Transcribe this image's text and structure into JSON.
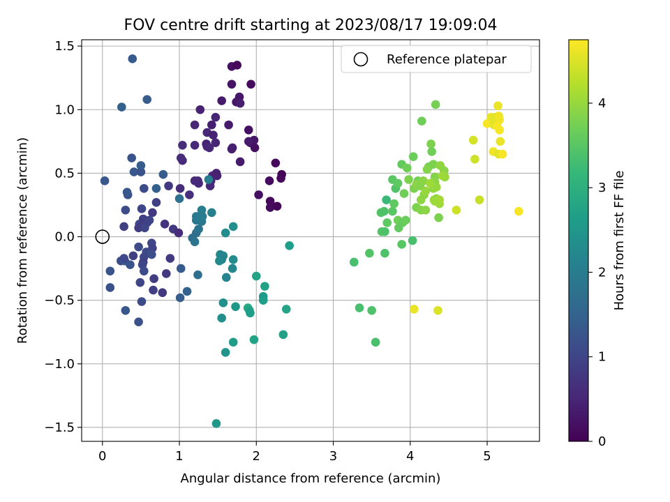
{
  "chart_data": {
    "type": "scatter",
    "title": "FOV centre drift starting at 2023/08/17 19:09:04",
    "xlabel": "Angular distance from reference (arcmin)",
    "ylabel": "Rotation from reference (arcmin)",
    "xlim": [
      -0.27,
      5.68
    ],
    "ylim": [
      -1.61,
      1.55
    ],
    "xticks": [
      0,
      1,
      2,
      3,
      4,
      5
    ],
    "yticks": [
      -1.5,
      -1.0,
      -0.5,
      0.0,
      0.5,
      1.0,
      1.5
    ],
    "xtick_labels": [
      "0",
      "1",
      "2",
      "3",
      "4",
      "5"
    ],
    "ytick_labels": [
      "−1.5",
      "−1.0",
      "−0.5",
      "0.0",
      "0.5",
      "1.0",
      "1.5"
    ],
    "grid": true,
    "legend": {
      "placement": "upper right",
      "entries": [
        "Reference platepar"
      ]
    },
    "reference_point": {
      "x": 0.0,
      "y": 0.0,
      "marker": "open-circle",
      "label": "Reference platepar"
    },
    "colorbar": {
      "label": "Hours from first FF file",
      "range": [
        0,
        4.75
      ],
      "ticks": [
        0,
        1,
        2,
        3,
        4
      ],
      "tick_labels": [
        "0",
        "1",
        "2",
        "3",
        "4"
      ],
      "colormap": "viridis",
      "colors": [
        "#440154",
        "#482878",
        "#3e4989",
        "#31688e",
        "#26828e",
        "#1f9e89",
        "#35b779",
        "#6ece58",
        "#b5de2b",
        "#fde725"
      ]
    },
    "points": [
      [
        1.68,
        1.34,
        0.2
      ],
      [
        1.75,
        1.35,
        0.1
      ],
      [
        1.93,
        1.2,
        0.15
      ],
      [
        1.68,
        1.2,
        0.25
      ],
      [
        1.78,
        1.1,
        0.3
      ],
      [
        1.55,
        1.07,
        0.35
      ],
      [
        1.74,
        1.06,
        0.3
      ],
      [
        1.79,
        1.05,
        0.4
      ],
      [
        1.27,
        1.0,
        0.45
      ],
      [
        1.47,
        0.94,
        0.5
      ],
      [
        1.42,
        0.88,
        0.4
      ],
      [
        1.2,
        0.88,
        0.5
      ],
      [
        1.64,
        0.88,
        0.35
      ],
      [
        1.36,
        0.82,
        0.55
      ],
      [
        1.9,
        0.84,
        0.2
      ],
      [
        1.44,
        0.8,
        0.45
      ],
      [
        1.97,
        0.76,
        0.3
      ],
      [
        1.92,
        0.74,
        0.25
      ],
      [
        1.9,
        0.75,
        0.35
      ],
      [
        1.47,
        0.74,
        0.5
      ],
      [
        1.2,
        0.72,
        0.55
      ],
      [
        1.35,
        0.73,
        0.45
      ],
      [
        1.04,
        0.72,
        0.6
      ],
      [
        1.69,
        0.7,
        0.45
      ],
      [
        1.36,
        0.71,
        0.5
      ],
      [
        1.68,
        0.69,
        0.4
      ],
      [
        1.98,
        0.7,
        0.2
      ],
      [
        1.39,
        0.7,
        0.55
      ],
      [
        1.04,
        0.6,
        0.55
      ],
      [
        1.02,
        0.62,
        0.6
      ],
      [
        1.79,
        0.59,
        0.35
      ],
      [
        2.25,
        0.58,
        0.1
      ],
      [
        1.43,
        0.48,
        0.5
      ],
      [
        1.48,
        0.5,
        0.45
      ],
      [
        1.49,
        0.48,
        0.45
      ],
      [
        2.33,
        0.49,
        0.05
      ],
      [
        2.32,
        0.46,
        0.1
      ],
      [
        2.17,
        0.44,
        0.15
      ],
      [
        1.2,
        0.44,
        0.55
      ],
      [
        1.24,
        0.44,
        0.6
      ],
      [
        1.25,
        0.42,
        0.55
      ],
      [
        1.41,
        0.44,
        0.5
      ],
      [
        1.4,
        0.4,
        0.55
      ],
      [
        2.03,
        0.33,
        0.2
      ],
      [
        2.18,
        0.28,
        0.1
      ],
      [
        2.18,
        0.23,
        0.15
      ],
      [
        2.27,
        0.24,
        0.05
      ],
      [
        1.01,
        0.38,
        0.6
      ],
      [
        1.13,
        0.33,
        0.65
      ],
      [
        0.86,
        0.4,
        0.8
      ],
      [
        0.79,
        0.49,
        1.4
      ],
      [
        0.41,
        0.51,
        1.3
      ],
      [
        0.5,
        0.51,
        1.2
      ],
      [
        0.5,
        0.56,
        1.4
      ],
      [
        0.03,
        0.44,
        1.3
      ],
      [
        0.38,
        0.62,
        1.25
      ],
      [
        0.25,
        1.02,
        1.45
      ],
      [
        0.39,
        1.4,
        1.35
      ],
      [
        0.58,
        1.08,
        1.4
      ],
      [
        0.54,
        0.38,
        1.1
      ],
      [
        0.7,
        0.38,
        1.45
      ],
      [
        0.33,
        0.33,
        1.2
      ],
      [
        0.32,
        0.35,
        1.3
      ],
      [
        0.7,
        0.27,
        0.9
      ],
      [
        0.3,
        0.21,
        1.1
      ],
      [
        0.51,
        0.22,
        1.0
      ],
      [
        0.65,
        0.19,
        0.8
      ],
      [
        0.53,
        0.14,
        0.9
      ],
      [
        0.61,
        0.13,
        1.0
      ],
      [
        0.58,
        0.11,
        0.95
      ],
      [
        0.48,
        0.1,
        1.1
      ],
      [
        0.52,
        0.1,
        0.85
      ],
      [
        0.81,
        0.1,
        0.7
      ],
      [
        0.28,
        0.08,
        0.9
      ],
      [
        0.47,
        0.07,
        0.85
      ],
      [
        0.55,
        0.07,
        1.0
      ],
      [
        0.92,
        0.06,
        0.8
      ],
      [
        0.99,
        0.03,
        0.6
      ],
      [
        0.64,
        -0.05,
        1.0
      ],
      [
        0.47,
        -0.08,
        1.1
      ],
      [
        0.65,
        -0.09,
        0.95
      ],
      [
        0.57,
        -0.12,
        1.05
      ],
      [
        0.4,
        -0.15,
        0.9
      ],
      [
        0.64,
        -0.14,
        1.15
      ],
      [
        0.54,
        -0.16,
        1.0
      ],
      [
        0.88,
        -0.17,
        0.8
      ],
      [
        0.24,
        -0.19,
        1.1
      ],
      [
        0.29,
        -0.19,
        1.3
      ],
      [
        0.28,
        -0.17,
        1.05
      ],
      [
        0.36,
        -0.22,
        1.25
      ],
      [
        0.53,
        -0.2,
        0.9
      ],
      [
        0.52,
        -0.22,
        1.0
      ],
      [
        0.54,
        -0.27,
        1.1
      ],
      [
        0.1,
        -0.27,
        1.25
      ],
      [
        0.83,
        -0.29,
        0.8
      ],
      [
        0.67,
        -0.33,
        0.85
      ],
      [
        0.49,
        -0.36,
        1.0
      ],
      [
        0.66,
        -0.42,
        0.9
      ],
      [
        0.78,
        -0.44,
        0.8
      ],
      [
        0.1,
        -0.4,
        1.2
      ],
      [
        0.51,
        -0.51,
        1.1
      ],
      [
        0.3,
        -0.58,
        1.3
      ],
      [
        0.47,
        -0.67,
        1.2
      ],
      [
        1.02,
        -0.25,
        1.35
      ],
      [
        1.1,
        -0.43,
        1.5
      ],
      [
        1.01,
        -0.48,
        1.4
      ],
      [
        1.17,
        -0.01,
        1.7
      ],
      [
        1.22,
        0.03,
        1.75
      ],
      [
        1.25,
        0.06,
        1.8
      ],
      [
        1.22,
        0.13,
        1.85
      ],
      [
        1.29,
        0.12,
        1.9
      ],
      [
        1.22,
        0.16,
        1.95
      ],
      [
        1.3,
        0.16,
        2.0
      ],
      [
        1.29,
        0.21,
        2.0
      ],
      [
        1.42,
        0.19,
        2.05
      ],
      [
        1.38,
        0.45,
        2.0
      ],
      [
        1.0,
        0.3,
        1.75
      ],
      [
        1.24,
        -0.3,
        1.7
      ],
      [
        1.2,
        -0.04,
        1.8
      ],
      [
        1.7,
        0.08,
        2.35
      ],
      [
        1.6,
        0.03,
        2.3
      ],
      [
        1.53,
        -0.14,
        2.25
      ],
      [
        1.57,
        -0.15,
        2.15
      ],
      [
        1.55,
        -0.18,
        2.1
      ],
      [
        1.52,
        -0.19,
        2.25
      ],
      [
        1.7,
        -0.18,
        2.3
      ],
      [
        1.69,
        -0.25,
        2.2
      ],
      [
        1.61,
        -0.32,
        2.15
      ],
      [
        1.57,
        -0.52,
        2.4
      ],
      [
        1.73,
        -0.55,
        2.5
      ],
      [
        1.55,
        -0.64,
        2.35
      ],
      [
        1.6,
        -0.91,
        2.45
      ],
      [
        1.7,
        -0.83,
        2.6
      ],
      [
        1.48,
        -1.47,
        2.5
      ],
      [
        1.89,
        -0.56,
        2.9
      ],
      [
        1.91,
        -0.58,
        2.7
      ],
      [
        1.92,
        -0.6,
        2.65
      ],
      [
        1.97,
        -0.81,
        2.75
      ],
      [
        2.0,
        -0.31,
        2.75
      ],
      [
        2.11,
        -0.39,
        2.7
      ],
      [
        2.09,
        -0.47,
        2.55
      ],
      [
        2.09,
        -0.5,
        2.65
      ],
      [
        2.35,
        -0.77,
        2.7
      ],
      [
        2.39,
        -0.57,
        2.75
      ],
      [
        2.43,
        -0.07,
        2.65
      ],
      [
        3.27,
        -0.2,
        3.35
      ],
      [
        3.34,
        -0.56,
        3.35
      ],
      [
        3.47,
        -0.13,
        3.45
      ],
      [
        3.5,
        -0.58,
        3.4
      ],
      [
        3.55,
        -0.83,
        3.35
      ],
      [
        3.67,
        -0.13,
        3.4
      ],
      [
        3.89,
        -0.06,
        3.5
      ],
      [
        4.03,
        -0.03,
        3.35
      ],
      [
        3.63,
        0.04,
        3.45
      ],
      [
        3.67,
        0.04,
        3.4
      ],
      [
        3.62,
        0.19,
        3.45
      ],
      [
        3.66,
        0.2,
        3.4
      ],
      [
        3.7,
        0.11,
        3.55
      ],
      [
        3.69,
        0.29,
        3.2
      ],
      [
        3.77,
        0.2,
        3.5
      ],
      [
        3.79,
        0.26,
        3.55
      ],
      [
        3.85,
        0.07,
        3.6
      ],
      [
        3.84,
        0.13,
        3.7
      ],
      [
        3.9,
        0.11,
        3.6
      ],
      [
        3.94,
        0.13,
        3.65
      ],
      [
        3.77,
        0.45,
        3.5
      ],
      [
        3.81,
        0.38,
        3.45
      ],
      [
        3.84,
        0.42,
        3.55
      ],
      [
        3.89,
        0.57,
        3.6
      ],
      [
        3.92,
        0.34,
        3.7
      ],
      [
        3.96,
        0.54,
        3.7
      ],
      [
        3.98,
        0.45,
        3.8
      ],
      [
        4.04,
        0.63,
        3.65
      ],
      [
        4.1,
        0.44,
        3.75
      ],
      [
        4.05,
        0.38,
        3.8
      ],
      [
        4.08,
        0.41,
        3.9
      ],
      [
        4.13,
        0.4,
        3.85
      ],
      [
        4.17,
        0.44,
        3.9
      ],
      [
        4.08,
        0.23,
        3.8
      ],
      [
        4.14,
        0.21,
        3.85
      ],
      [
        4.2,
        0.21,
        3.9
      ],
      [
        4.14,
        0.29,
        3.95
      ],
      [
        4.18,
        0.33,
        3.9
      ],
      [
        4.2,
        0.36,
        4.0
      ],
      [
        4.24,
        0.55,
        3.75
      ],
      [
        4.27,
        0.73,
        3.8
      ],
      [
        4.22,
        0.53,
        3.85
      ],
      [
        4.28,
        0.67,
        3.7
      ],
      [
        4.3,
        0.57,
        3.8
      ],
      [
        4.32,
        0.47,
        3.85
      ],
      [
        4.32,
        0.43,
        3.9
      ],
      [
        4.3,
        0.38,
        3.95
      ],
      [
        4.34,
        0.39,
        4.0
      ],
      [
        4.26,
        0.42,
        4.05
      ],
      [
        4.31,
        0.29,
        4.0
      ],
      [
        4.34,
        0.3,
        3.95
      ],
      [
        4.38,
        0.26,
        4.05
      ],
      [
        4.38,
        0.29,
        4.1
      ],
      [
        4.37,
        0.15,
        3.8
      ],
      [
        4.32,
        0.28,
        4.05
      ],
      [
        4.39,
        0.56,
        3.95
      ],
      [
        4.44,
        0.52,
        3.9
      ],
      [
        4.45,
        0.47,
        4.0
      ],
      [
        4.42,
        0.48,
        4.05
      ],
      [
        4.15,
        0.91,
        3.7
      ],
      [
        4.33,
        1.04,
        3.75
      ],
      [
        4.6,
        0.21,
        4.4
      ],
      [
        4.9,
        0.29,
        4.35
      ],
      [
        4.05,
        -0.57,
        4.6
      ],
      [
        4.36,
        -0.58,
        4.5
      ],
      [
        4.84,
        0.61,
        4.4
      ],
      [
        4.82,
        0.76,
        4.45
      ],
      [
        5.0,
        0.89,
        4.7
      ],
      [
        5.05,
        0.94,
        4.6
      ],
      [
        5.1,
        0.94,
        4.55
      ],
      [
        5.14,
        1.03,
        4.6
      ],
      [
        5.15,
        0.95,
        4.65
      ],
      [
        5.16,
        0.92,
        4.65
      ],
      [
        5.09,
        0.88,
        4.55
      ],
      [
        5.13,
        0.87,
        4.7
      ],
      [
        5.16,
        0.84,
        4.7
      ],
      [
        5.17,
        0.75,
        4.6
      ],
      [
        5.08,
        0.67,
        4.65
      ],
      [
        5.15,
        0.65,
        4.55
      ],
      [
        5.2,
        0.65,
        4.7
      ],
      [
        5.41,
        0.2,
        4.7
      ]
    ]
  }
}
